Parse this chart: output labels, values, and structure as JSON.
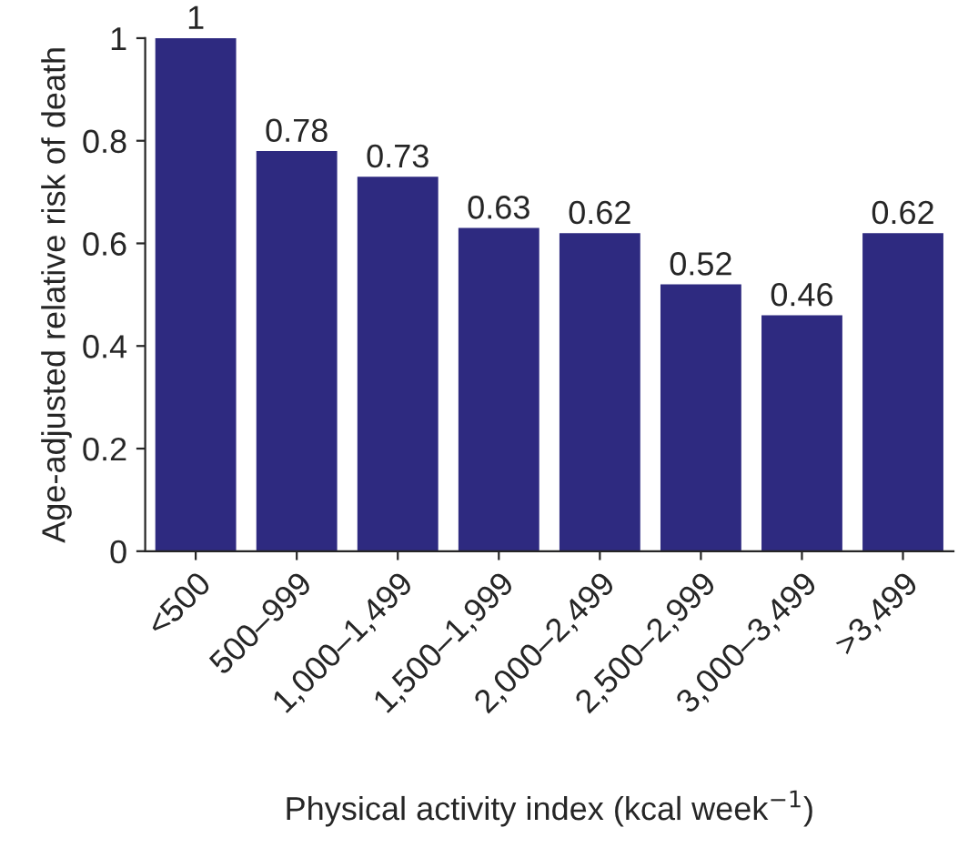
{
  "chart_data": {
    "type": "bar",
    "categories": [
      "<500",
      "500–999",
      "1,000–1,499",
      "1,500–1,999",
      "2,000–2,499",
      "2,500–2,999",
      "3,000–3,499",
      ">3,499"
    ],
    "values": [
      1,
      0.78,
      0.73,
      0.63,
      0.62,
      0.52,
      0.46,
      0.62
    ],
    "color": "#2e2a80",
    "xlabel": "Physical activity index (kcal week$^{−1}$)",
    "ylabel": "Age-adjusted relative risk of death",
    "ylim": [
      0,
      1
    ],
    "yticks": [
      0,
      0.2,
      0.4,
      0.6,
      0.8,
      1
    ],
    "data_labels": true,
    "grid": false,
    "legend": false
  }
}
